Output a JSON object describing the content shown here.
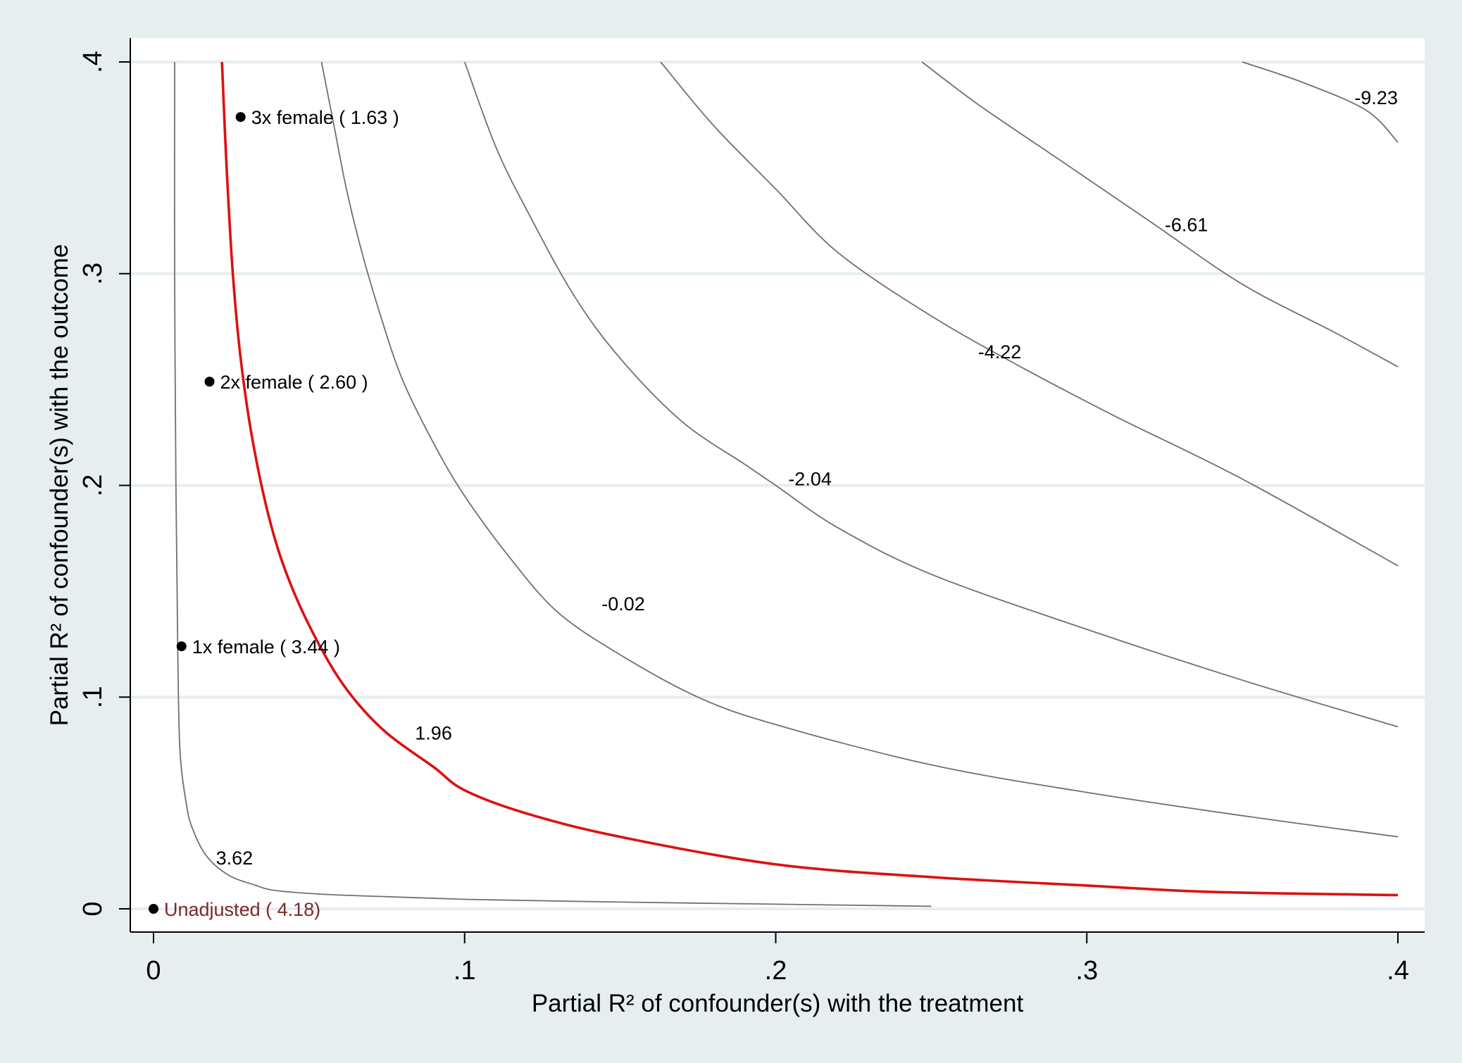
{
  "chart_data": {
    "type": "line",
    "subtype": "contour",
    "title": "",
    "xlabel": "Partial R² of confounder(s) with the treatment",
    "ylabel": "Partial R² of confounder(s) with the outcome",
    "xlim": [
      0,
      0.4
    ],
    "ylim": [
      0,
      0.4
    ],
    "x_ticks": [
      {
        "value": 0,
        "label": "0"
      },
      {
        "value": 0.1,
        "label": ".1"
      },
      {
        "value": 0.2,
        "label": ".2"
      },
      {
        "value": 0.3,
        "label": ".3"
      },
      {
        "value": 0.4,
        "label": ".4"
      }
    ],
    "y_ticks": [
      {
        "value": 0,
        "label": "0"
      },
      {
        "value": 0.1,
        "label": ".1"
      },
      {
        "value": 0.2,
        "label": ".2"
      },
      {
        "value": 0.3,
        "label": ".3"
      },
      {
        "value": 0.4,
        "label": ".4"
      }
    ],
    "grid": "horizontal",
    "colors": {
      "background": "#e6eef0",
      "plot_background": "#ffffff",
      "grid": "#e6eef0",
      "contour": "#707070",
      "threshold": "#dd1111",
      "point": "#000000",
      "unadjusted_label": "#7a2a2a"
    },
    "contours": [
      {
        "label": "3.62",
        "threshold": false,
        "label_at": [
          0.026,
          0.024
        ],
        "points": [
          [
            0.0068,
            0.4
          ],
          [
            0.0068,
            0.3
          ],
          [
            0.0072,
            0.2
          ],
          [
            0.0078,
            0.12
          ],
          [
            0.0085,
            0.075
          ],
          [
            0.0105,
            0.05
          ],
          [
            0.0125,
            0.038
          ],
          [
            0.017,
            0.025
          ],
          [
            0.024,
            0.016
          ],
          [
            0.032,
            0.0115
          ],
          [
            0.04,
            0.0085
          ],
          [
            0.06,
            0.0065
          ],
          [
            0.1,
            0.0045
          ],
          [
            0.15,
            0.0032
          ],
          [
            0.2,
            0.0022
          ],
          [
            0.25,
            0.0012
          ]
        ]
      },
      {
        "label": "1.96",
        "threshold": true,
        "label_at": [
          0.09,
          0.083
        ],
        "points": [
          [
            0.022,
            0.4
          ],
          [
            0.0235,
            0.35
          ],
          [
            0.0255,
            0.3
          ],
          [
            0.028,
            0.26
          ],
          [
            0.032,
            0.22
          ],
          [
            0.038,
            0.18
          ],
          [
            0.045,
            0.15
          ],
          [
            0.055,
            0.12
          ],
          [
            0.064,
            0.1
          ],
          [
            0.075,
            0.083
          ],
          [
            0.09,
            0.067
          ],
          [
            0.1,
            0.056
          ],
          [
            0.12,
            0.045
          ],
          [
            0.15,
            0.034
          ],
          [
            0.2,
            0.021
          ],
          [
            0.25,
            0.015
          ],
          [
            0.3,
            0.011
          ],
          [
            0.34,
            0.008
          ],
          [
            0.4,
            0.0065
          ]
        ]
      },
      {
        "label": "-0.02",
        "threshold": false,
        "label_at": [
          0.151,
          0.144
        ],
        "points": [
          [
            0.054,
            0.4
          ],
          [
            0.058,
            0.37
          ],
          [
            0.062,
            0.34
          ],
          [
            0.067,
            0.31
          ],
          [
            0.073,
            0.28
          ],
          [
            0.08,
            0.25
          ],
          [
            0.09,
            0.22
          ],
          [
            0.1,
            0.195
          ],
          [
            0.115,
            0.165
          ],
          [
            0.13,
            0.14
          ],
          [
            0.15,
            0.12
          ],
          [
            0.175,
            0.1
          ],
          [
            0.2,
            0.087
          ],
          [
            0.25,
            0.068
          ],
          [
            0.3,
            0.055
          ],
          [
            0.35,
            0.044
          ],
          [
            0.4,
            0.034
          ]
        ]
      },
      {
        "label": "-2.04",
        "threshold": false,
        "label_at": [
          0.211,
          0.203
        ],
        "points": [
          [
            0.1,
            0.4
          ],
          [
            0.11,
            0.36
          ],
          [
            0.12,
            0.33
          ],
          [
            0.135,
            0.29
          ],
          [
            0.15,
            0.26
          ],
          [
            0.17,
            0.23
          ],
          [
            0.19,
            0.21
          ],
          [
            0.2,
            0.2
          ],
          [
            0.22,
            0.18
          ],
          [
            0.25,
            0.158
          ],
          [
            0.3,
            0.132
          ],
          [
            0.35,
            0.108
          ],
          [
            0.4,
            0.086
          ]
        ]
      },
      {
        "label": "-4.22",
        "threshold": false,
        "label_at": [
          0.272,
          0.263
        ],
        "points": [
          [
            0.163,
            0.4
          ],
          [
            0.18,
            0.37
          ],
          [
            0.2,
            0.34
          ],
          [
            0.22,
            0.31
          ],
          [
            0.25,
            0.28
          ],
          [
            0.28,
            0.255
          ],
          [
            0.31,
            0.232
          ],
          [
            0.35,
            0.203
          ],
          [
            0.4,
            0.162
          ]
        ]
      },
      {
        "label": "-6.61",
        "threshold": false,
        "label_at": [
          0.332,
          0.323
        ],
        "points": [
          [
            0.247,
            0.4
          ],
          [
            0.265,
            0.38
          ],
          [
            0.29,
            0.355
          ],
          [
            0.32,
            0.325
          ],
          [
            0.35,
            0.295
          ],
          [
            0.38,
            0.272
          ],
          [
            0.4,
            0.256
          ]
        ]
      },
      {
        "label": "-9.23",
        "threshold": false,
        "label_at": [
          0.393,
          0.383
        ],
        "points": [
          [
            0.35,
            0.4
          ],
          [
            0.37,
            0.39
          ],
          [
            0.39,
            0.377
          ],
          [
            0.4,
            0.362
          ]
        ]
      }
    ],
    "points": [
      {
        "label": "Unadjusted ( 4.18)",
        "x": 0,
        "y": 0,
        "unadjusted": true
      },
      {
        "label": "1x female ( 3.44 )",
        "x": 0.009,
        "y": 0.124,
        "unadjusted": false
      },
      {
        "label": "2x female ( 2.60 )",
        "x": 0.018,
        "y": 0.249,
        "unadjusted": false
      },
      {
        "label": "3x female ( 1.63 )",
        "x": 0.028,
        "y": 0.374,
        "unadjusted": false
      }
    ]
  }
}
